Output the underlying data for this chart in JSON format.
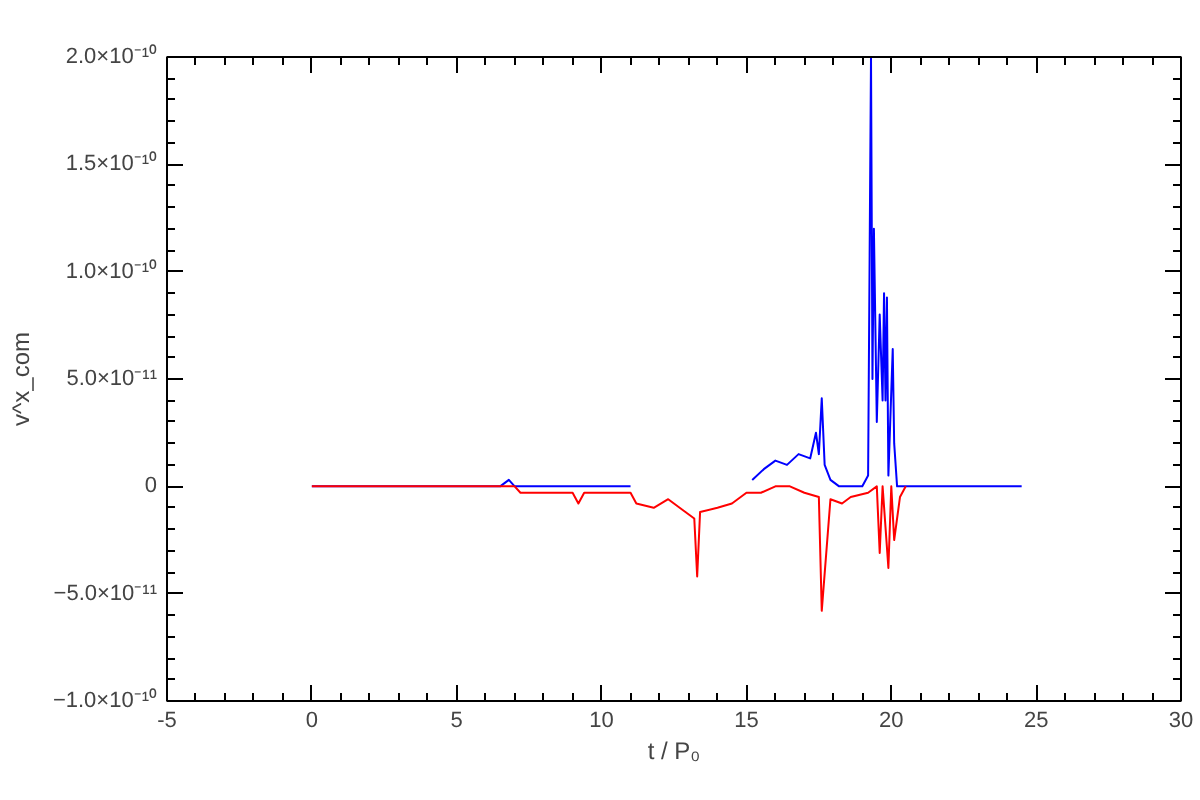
{
  "chart_data": {
    "type": "line",
    "xlabel": "t / P₀",
    "ylabel": "v^x_com",
    "xlim": [
      -5,
      30
    ],
    "xticks": [
      -5,
      0,
      5,
      10,
      15,
      20,
      25,
      30
    ],
    "ylim": [
      -1e-10,
      2e-10
    ],
    "yticks": [
      {
        "value": -1e-10,
        "label": "−1.0×10⁻¹⁰"
      },
      {
        "value": -5e-11,
        "label": "−5.0×10⁻¹¹"
      },
      0,
      {
        "value": 5e-11,
        "label": "5.0×10⁻¹¹"
      },
      {
        "value": 1e-10,
        "label": "1.0×10⁻¹⁰"
      },
      {
        "value": 1.5e-10,
        "label": "1.5×10⁻¹⁰"
      },
      {
        "value": 2e-10,
        "label": "2.0×10⁻¹⁰"
      }
    ],
    "grid": false,
    "line_style": "solid",
    "marker": "none",
    "series": [
      {
        "color": "#0000ff",
        "x": [
          0,
          3,
          6.5,
          6.8,
          7,
          11,
          11.5,
          15.2,
          15.6,
          16,
          16.4,
          16.8,
          17.2,
          17.4,
          17.5,
          17.6,
          17.7,
          17.9,
          18.2,
          19.0,
          19.2,
          19.3,
          19.35,
          19.4,
          19.5,
          19.6,
          19.7,
          19.75,
          19.8,
          19.85,
          19.9,
          20.05,
          20.1,
          20.2,
          20.5,
          24.5
        ],
        "values": [
          0,
          0,
          0,
          3e-12,
          0,
          0,
          null,
          3e-12,
          8e-12,
          1.2e-11,
          1e-11,
          1.5e-11,
          1.3e-11,
          2.5e-11,
          1.5e-11,
          4.1e-11,
          1e-11,
          3e-12,
          0,
          0,
          5e-12,
          2e-10,
          5e-11,
          1.2e-10,
          3e-11,
          8e-11,
          4e-11,
          9e-11,
          4e-11,
          8.8e-11,
          5e-12,
          6.4e-11,
          2e-11,
          0,
          0,
          0
        ]
      },
      {
        "color": "#ff0000",
        "x": [
          0,
          7,
          7.2,
          9,
          9.2,
          9.4,
          11,
          11.2,
          11.8,
          12.3,
          12.8,
          13.2,
          13.3,
          13.4,
          14,
          14.5,
          15,
          15.5,
          16,
          16.5,
          17,
          17.5,
          17.6,
          17.9,
          18.3,
          18.6,
          19.2,
          19.5,
          19.6,
          19.7,
          19.9,
          20.0,
          20.1,
          20.3,
          20.5
        ],
        "values": [
          0,
          0,
          -3e-12,
          -3e-12,
          -8e-12,
          -3e-12,
          -3e-12,
          -8e-12,
          -1e-11,
          -6e-12,
          -1.1e-11,
          -1.5e-11,
          -4.2e-11,
          -1.2e-11,
          -1e-11,
          -8e-12,
          -3e-12,
          -3e-12,
          0,
          0,
          -3e-12,
          -5e-12,
          -5.8e-11,
          -6e-12,
          -8e-12,
          -5e-12,
          -3e-12,
          0,
          -3.1e-11,
          0,
          -3.8e-11,
          0,
          -2.5e-11,
          -5e-12,
          0
        ]
      }
    ]
  }
}
